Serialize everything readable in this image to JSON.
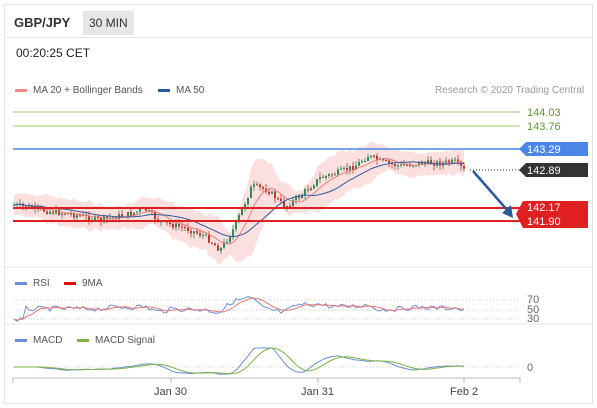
{
  "header": {
    "pair": "GBP/JPY",
    "timeframe": "30 MIN"
  },
  "clock": "00:20:25 CET",
  "legend_main": {
    "ma20_label": "MA 20 + Bollinger Bands",
    "ma50_label": "MA 50",
    "credit": "Research © 2020 Trading Central"
  },
  "legend_rsi": {
    "rsi_label": "RSI",
    "ma9_label": "9MA"
  },
  "legend_macd": {
    "macd_label": "MACD",
    "signal_label": "MACD Signal"
  },
  "colors": {
    "ma20": "#f08a8a",
    "ma50": "#3a6db5",
    "resistance": "#7cb342",
    "pivot": "#4a86e8",
    "support": "#e02020",
    "price_tag": "#333333",
    "rsi": "#6a8fd8",
    "ma9": "#d11",
    "macd": "#6a8fd8",
    "signal": "#7cb342"
  },
  "levels": [
    {
      "value": 144.03,
      "label": "144.03",
      "type": "resistance"
    },
    {
      "value": 143.76,
      "label": "143.76",
      "type": "resistance"
    },
    {
      "value": 143.29,
      "label": "143.29",
      "type": "pivot"
    },
    {
      "value": 142.89,
      "label": "142.89",
      "type": "last-price"
    },
    {
      "value": 142.17,
      "label": "142.17",
      "type": "support"
    },
    {
      "value": 141.9,
      "label": "141.90",
      "type": "support"
    }
  ],
  "rsi_levels": [
    "70",
    "50",
    "30"
  ],
  "macd_level": "0",
  "x_labels": [
    "Jan 30",
    "Jan 31",
    "Feb 2"
  ]
}
